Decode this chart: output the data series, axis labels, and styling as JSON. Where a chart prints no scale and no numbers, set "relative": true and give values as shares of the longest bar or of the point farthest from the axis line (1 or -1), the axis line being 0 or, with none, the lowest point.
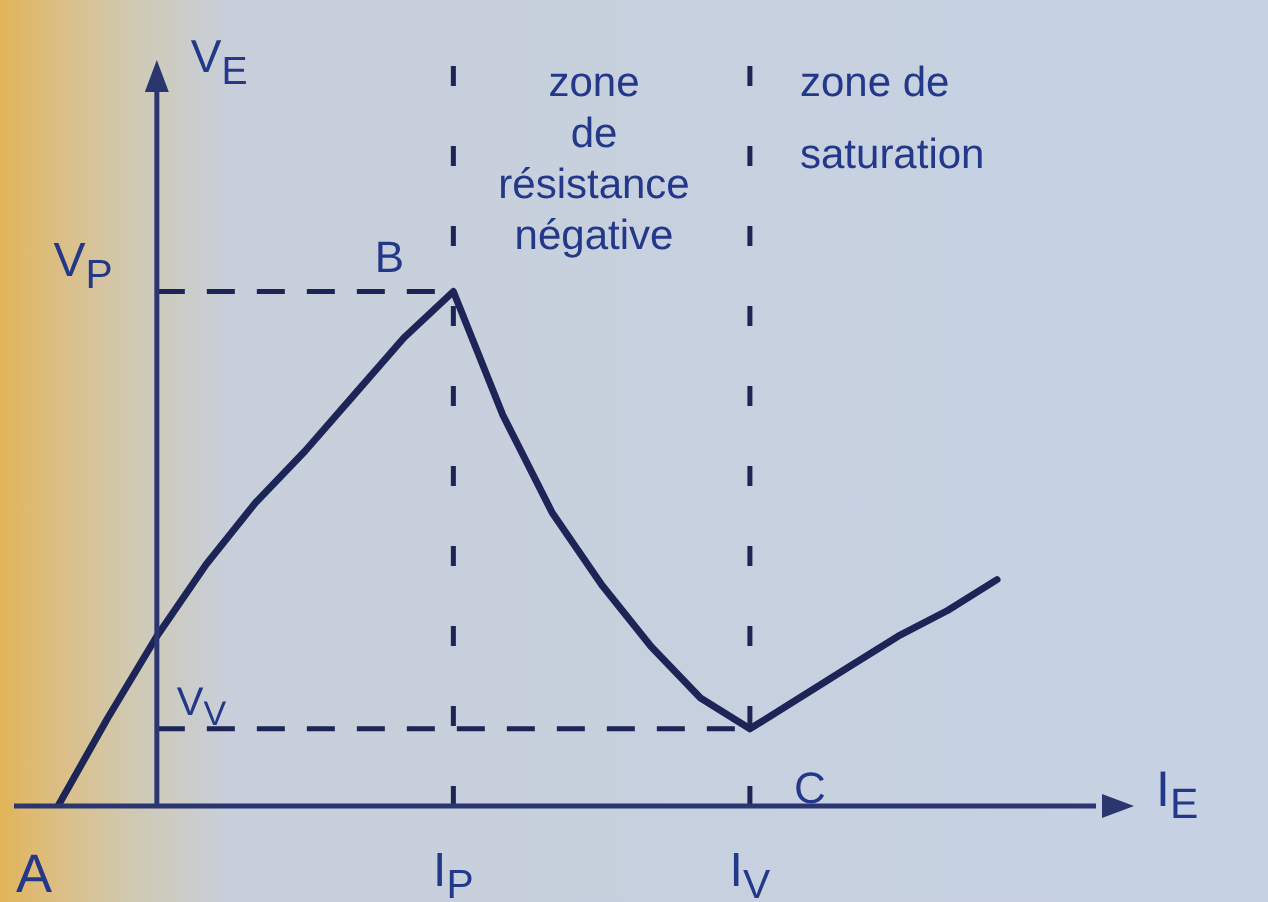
{
  "chart_data": {
    "type": "line",
    "relative": true,
    "xlabel": "I$_{E}$",
    "ylabel": "V$_{E}$",
    "grid": "x",
    "tick_labels": "x",
    "categories": [
      null,
      null,
      null,
      null,
      null,
      null,
      null,
      null,
      "I$_{P}$",
      null,
      null,
      null,
      null,
      null,
      "I$_{V}$",
      null,
      null,
      null,
      null,
      null
    ],
    "series": [
      {
        "color": "#1c2556",
        "values": [
          0,
          0.17,
          0.33,
          0.47,
          0.59,
          0.69,
          0.8,
          0.91,
          1,
          0.76,
          0.57,
          0.43,
          0.31,
          0.21,
          0.15,
          0.21,
          0.27,
          0.33,
          0.38,
          0.44
        ]
      }
    ],
    "ref_lines": [
      {
        "axis": "y",
        "value": 1,
        "label": "V$_{P}$",
        "color": "#1c2556",
        "line_style": "dashed"
      },
      {
        "axis": "y",
        "value": 0.15,
        "label": "V$_{V}$",
        "color": "#1c2556",
        "line_style": "dashed"
      }
    ],
    "annotations": [
      "A",
      {
        "text": "B",
        "x": "I$_{P}$",
        "y": 1
      },
      {
        "text": "C",
        "x": "I$_{V}$",
        "y": 0.15
      },
      "zone de résistance négative",
      "zone de saturation"
    ]
  }
}
